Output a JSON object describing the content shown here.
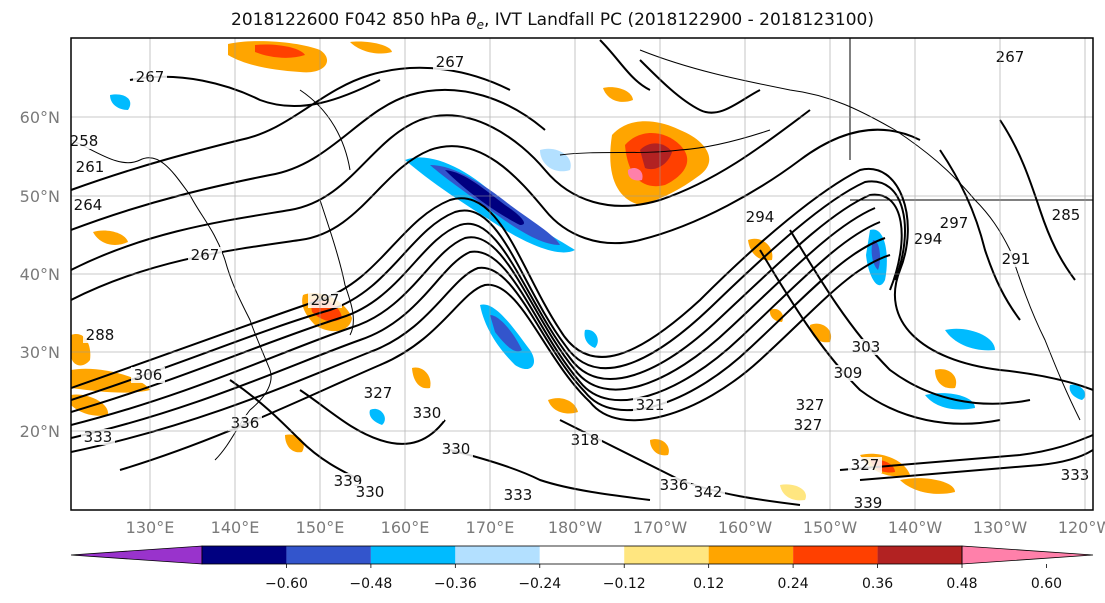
{
  "title": {
    "prefix": "2018122600 F042 850 hPa ",
    "theta": "θ",
    "theta_sub": "e",
    "suffix": ", IVT Landfall PC (2018122900 - 2018123100)"
  },
  "axes": {
    "lat_labels": [
      "60°N",
      "50°N",
      "40°N",
      "30°N",
      "20°N"
    ],
    "lon_labels": [
      "130°E",
      "140°E",
      "150°E",
      "160°E",
      "170°E",
      "180°W",
      "170°W",
      "160°W",
      "150°W",
      "140°W",
      "130°W",
      "120°W"
    ]
  },
  "colorbar": {
    "colors": [
      "#9933cc",
      "#000080",
      "#3355cc",
      "#00bbff",
      "#b3e0ff",
      "#ffffff",
      "#ffe680",
      "#ffa500",
      "#ff4000",
      "#b22222",
      "#ff80aa"
    ],
    "tick_labels": [
      "−0.60",
      "−0.48",
      "−0.36",
      "−0.24",
      "−0.12",
      "0.12",
      "0.24",
      "0.36",
      "0.48",
      "0.60"
    ]
  },
  "contour_labels": [
    "267",
    "267",
    "264",
    "261",
    "258",
    "267",
    "297",
    "306",
    "333",
    "336",
    "327",
    "330",
    "330",
    "339",
    "330",
    "333",
    "318",
    "321",
    "327",
    "333",
    "336",
    "342",
    "339",
    "294",
    "297",
    "294",
    "291",
    "285",
    "303",
    "309",
    "327",
    "327",
    "267",
    "288"
  ],
  "shading": {
    "positive_colors": [
      "#ffe680",
      "#ffa500",
      "#ff4000",
      "#b22222",
      "#ff80aa"
    ],
    "negative_colors": [
      "#b3e0ff",
      "#00bbff",
      "#3355cc",
      "#000080"
    ]
  }
}
